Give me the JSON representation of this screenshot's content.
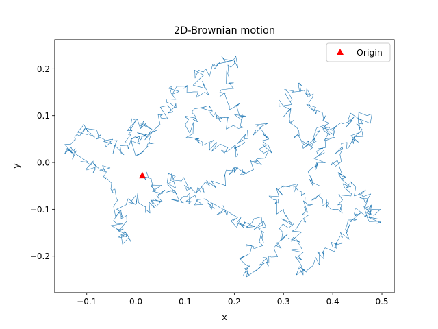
{
  "chart_data": {
    "type": "line",
    "title": "2D-Brownian motion",
    "xlabel": "x",
    "ylabel": "y",
    "xlim": [
      -0.165,
      0.525
    ],
    "ylim": [
      -0.278,
      0.262
    ],
    "xticks": [
      -0.1,
      0.0,
      0.1,
      0.2,
      0.3,
      0.4,
      0.5
    ],
    "xtick_labels": [
      "−0.1",
      "0.0",
      "0.1",
      "0.2",
      "0.3",
      "0.4",
      "0.5"
    ],
    "yticks": [
      -0.2,
      -0.1,
      0.0,
      0.1,
      0.2
    ],
    "ytick_labels": [
      "−0.2",
      "−0.1",
      "0.0",
      "0.1",
      "0.2"
    ],
    "grid": false,
    "legend": {
      "placement": "top-right",
      "entries": [
        "Origin"
      ]
    },
    "series": [
      {
        "kind": "random-walk-line",
        "color": "#1f77b4",
        "waypoints": [
          [
            0.013,
            -0.028
          ],
          [
            0.03,
            -0.05
          ],
          [
            0.05,
            -0.065
          ],
          [
            0.04,
            -0.08
          ],
          [
            0.02,
            -0.1
          ],
          [
            0.0,
            -0.07
          ],
          [
            -0.02,
            -0.09
          ],
          [
            -0.04,
            -0.13
          ],
          [
            -0.03,
            -0.16
          ],
          [
            -0.01,
            -0.17
          ],
          [
            -0.03,
            -0.12
          ],
          [
            -0.05,
            -0.06
          ],
          [
            -0.06,
            -0.02
          ],
          [
            -0.08,
            -0.01
          ],
          [
            -0.1,
            0.0
          ],
          [
            -0.13,
            0.02
          ],
          [
            -0.14,
            0.03
          ],
          [
            -0.12,
            0.06
          ],
          [
            -0.1,
            0.07
          ],
          [
            -0.08,
            0.05
          ],
          [
            -0.05,
            0.04
          ],
          [
            -0.03,
            0.02
          ],
          [
            -0.01,
            0.06
          ],
          [
            0.0,
            0.09
          ],
          [
            0.02,
            0.08
          ],
          [
            0.03,
            0.04
          ],
          [
            0.01,
            0.02
          ],
          [
            -0.01,
            0.05
          ],
          [
            0.02,
            0.06
          ],
          [
            0.05,
            0.1
          ],
          [
            0.08,
            0.12
          ],
          [
            0.07,
            0.15
          ],
          [
            0.1,
            0.16
          ],
          [
            0.14,
            0.15
          ],
          [
            0.12,
            0.19
          ],
          [
            0.16,
            0.2
          ],
          [
            0.18,
            0.22
          ],
          [
            0.2,
            0.21
          ],
          [
            0.19,
            0.17
          ],
          [
            0.17,
            0.14
          ],
          [
            0.2,
            0.12
          ],
          [
            0.22,
            0.1
          ],
          [
            0.2,
            0.08
          ],
          [
            0.17,
            0.09
          ],
          [
            0.15,
            0.12
          ],
          [
            0.12,
            0.1
          ],
          [
            0.1,
            0.08
          ],
          [
            0.12,
            0.05
          ],
          [
            0.15,
            0.04
          ],
          [
            0.18,
            0.02
          ],
          [
            0.2,
            0.03
          ],
          [
            0.22,
            0.05
          ],
          [
            0.25,
            0.08
          ],
          [
            0.27,
            0.05
          ],
          [
            0.26,
            0.02
          ],
          [
            0.24,
            0.0
          ],
          [
            0.22,
            -0.02
          ],
          [
            0.2,
            -0.01
          ],
          [
            0.18,
            -0.03
          ],
          [
            0.15,
            -0.05
          ],
          [
            0.13,
            -0.06
          ],
          [
            0.1,
            -0.05
          ],
          [
            0.08,
            -0.03
          ],
          [
            0.07,
            -0.06
          ],
          [
            0.09,
            -0.08
          ],
          [
            0.12,
            -0.07
          ],
          [
            0.15,
            -0.09
          ],
          [
            0.18,
            -0.1
          ],
          [
            0.2,
            -0.12
          ],
          [
            0.22,
            -0.14
          ],
          [
            0.24,
            -0.12
          ],
          [
            0.26,
            -0.15
          ],
          [
            0.24,
            -0.18
          ],
          [
            0.22,
            -0.2
          ],
          [
            0.23,
            -0.24
          ],
          [
            0.25,
            -0.22
          ],
          [
            0.27,
            -0.2
          ],
          [
            0.29,
            -0.17
          ],
          [
            0.31,
            -0.14
          ],
          [
            0.3,
            -0.1
          ],
          [
            0.28,
            -0.08
          ],
          [
            0.3,
            -0.05
          ],
          [
            0.33,
            -0.06
          ],
          [
            0.35,
            -0.09
          ],
          [
            0.34,
            -0.12
          ],
          [
            0.32,
            -0.16
          ],
          [
            0.33,
            -0.2
          ],
          [
            0.34,
            -0.24
          ],
          [
            0.36,
            -0.22
          ],
          [
            0.38,
            -0.19
          ],
          [
            0.4,
            -0.18
          ],
          [
            0.42,
            -0.16
          ],
          [
            0.43,
            -0.13
          ],
          [
            0.45,
            -0.11
          ],
          [
            0.47,
            -0.1
          ],
          [
            0.49,
            -0.13
          ],
          [
            0.48,
            -0.09
          ],
          [
            0.46,
            -0.07
          ],
          [
            0.44,
            -0.05
          ],
          [
            0.42,
            -0.03
          ],
          [
            0.4,
            0.0
          ],
          [
            0.42,
            0.03
          ],
          [
            0.44,
            0.05
          ],
          [
            0.46,
            0.07
          ],
          [
            0.47,
            0.1
          ],
          [
            0.44,
            0.09
          ],
          [
            0.41,
            0.08
          ],
          [
            0.38,
            0.07
          ],
          [
            0.36,
            0.05
          ],
          [
            0.34,
            0.03
          ],
          [
            0.33,
            0.06
          ],
          [
            0.32,
            0.09
          ],
          [
            0.3,
            0.12
          ],
          [
            0.31,
            0.15
          ],
          [
            0.33,
            0.17
          ],
          [
            0.35,
            0.14
          ],
          [
            0.36,
            0.11
          ],
          [
            0.38,
            0.09
          ],
          [
            0.4,
            0.06
          ],
          [
            0.38,
            0.03
          ],
          [
            0.37,
            0.0
          ],
          [
            0.35,
            -0.02
          ],
          [
            0.36,
            -0.05
          ],
          [
            0.38,
            -0.08
          ],
          [
            0.4,
            -0.1
          ],
          [
            0.42,
            -0.08
          ],
          [
            0.43,
            -0.05
          ]
        ]
      }
    ],
    "markers": [
      {
        "label": "Origin",
        "shape": "triangle",
        "color": "#ff0000",
        "x": 0.013,
        "y": -0.028
      }
    ]
  }
}
